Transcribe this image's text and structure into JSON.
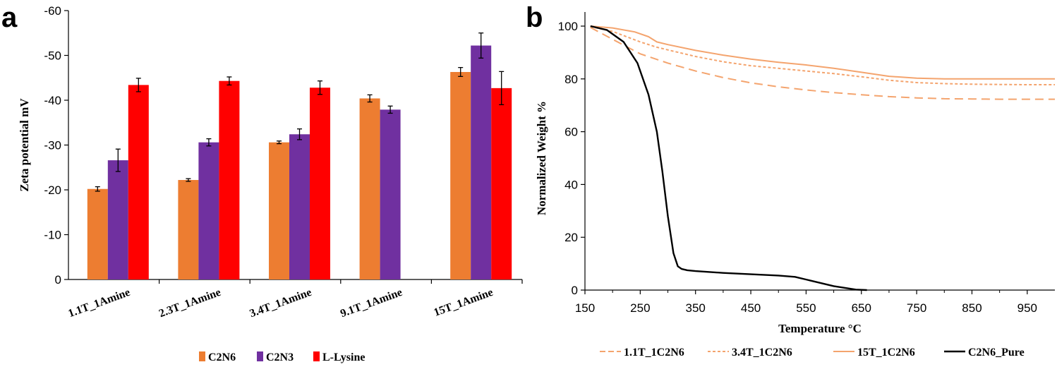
{
  "panels": {
    "a": "a",
    "b": "b"
  },
  "chart_data": [
    {
      "type": "bar",
      "title": "",
      "xlabel": "",
      "ylabel": "Zeta potential mV",
      "ylim": [
        0,
        -60
      ],
      "yticks": [
        0,
        -10,
        -20,
        -30,
        -40,
        -50,
        -60
      ],
      "categories": [
        "1.1T_1Amine",
        "2.3T_1Amine",
        "3.4T_1Amine",
        "9.1T_1Amine",
        "15T_1Amine"
      ],
      "series": [
        {
          "name": "C2N6",
          "color": "#ED7D31",
          "values": [
            -20.2,
            -22.2,
            -30.6,
            -40.4,
            -46.3
          ],
          "errors": [
            0.5,
            0.3,
            0.3,
            0.8,
            1.0
          ]
        },
        {
          "name": "C2N3",
          "color": "#7030A0",
          "values": [
            -26.6,
            -30.6,
            -32.4,
            -37.9,
            -52.2
          ],
          "errors": [
            2.5,
            0.8,
            1.2,
            0.8,
            2.8
          ]
        },
        {
          "name": "L-Lysine",
          "color": "#FF0000",
          "values": [
            -43.4,
            -44.3,
            -42.8,
            null,
            -42.7
          ],
          "errors": [
            1.5,
            0.9,
            1.5,
            null,
            3.7
          ]
        }
      ],
      "legend": "bottom"
    },
    {
      "type": "line",
      "title": "",
      "xlabel": "Temperature °C",
      "ylabel": "Normalized Weight %",
      "xlim": [
        150,
        1000
      ],
      "ylim": [
        0,
        100
      ],
      "xticks": [
        150,
        250,
        350,
        450,
        550,
        650,
        750,
        850,
        950
      ],
      "yticks": [
        0,
        20,
        40,
        60,
        80,
        100
      ],
      "series": [
        {
          "name": "1.1T_1C2N6",
          "color": "#F4A46E",
          "style": "dashed",
          "x": [
            160,
            200,
            250,
            300,
            350,
            400,
            450,
            500,
            550,
            600,
            650,
            700,
            750,
            800,
            850,
            900,
            950,
            1000
          ],
          "y": [
            99.5,
            95,
            89.5,
            86,
            83,
            80.5,
            78.5,
            77,
            75.8,
            74.8,
            74,
            73.3,
            72.8,
            72.5,
            72.4,
            72.3,
            72.3,
            72.3
          ]
        },
        {
          "name": "3.4T_1C2N6",
          "color": "#F4A46E",
          "style": "dotted",
          "x": [
            160,
            200,
            250,
            280,
            300,
            350,
            400,
            450,
            500,
            550,
            600,
            650,
            700,
            750,
            800,
            850,
            900,
            950,
            1000
          ],
          "y": [
            99.8,
            98,
            94,
            92,
            91,
            88.5,
            86.5,
            85,
            84,
            83,
            82,
            80.8,
            79.5,
            78.6,
            78.2,
            78,
            77.9,
            77.8,
            77.8
          ]
        },
        {
          "name": "15T_1C2N6",
          "color": "#F4A46E",
          "style": "solid",
          "x": [
            160,
            200,
            240,
            265,
            280,
            300,
            350,
            400,
            450,
            500,
            550,
            600,
            650,
            700,
            750,
            800,
            850,
            900,
            950,
            1000
          ],
          "y": [
            100,
            99.3,
            97.8,
            96,
            94,
            93,
            90.8,
            89,
            87.5,
            86.3,
            85.3,
            84,
            82.5,
            81,
            80.3,
            80,
            80,
            80,
            80,
            80
          ]
        },
        {
          "name": "C2N6_Pure",
          "color": "#000000",
          "style": "solid",
          "x": [
            160,
            190,
            220,
            245,
            265,
            280,
            290,
            300,
            310,
            318,
            325,
            335,
            350,
            400,
            450,
            500,
            530,
            560,
            600,
            640,
            660
          ],
          "y": [
            100,
            98.5,
            94,
            86,
            74,
            60,
            45,
            28,
            14,
            9,
            8,
            7.5,
            7.2,
            6.5,
            6,
            5.5,
            5,
            3.5,
            1.5,
            0.2,
            0
          ]
        }
      ],
      "legend": "bottom"
    }
  ]
}
